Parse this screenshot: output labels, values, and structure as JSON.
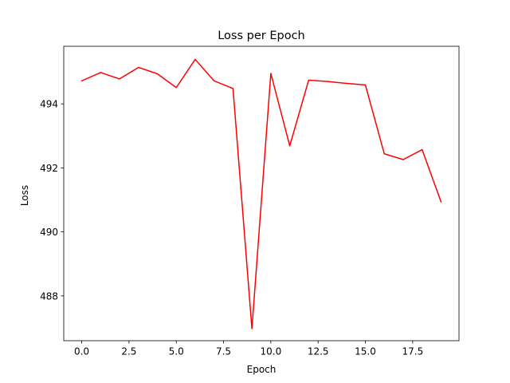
{
  "chart_data": {
    "type": "line",
    "title": "Loss per Epoch",
    "xlabel": "Epoch",
    "ylabel": "Loss",
    "x": [
      0,
      1,
      2,
      3,
      4,
      5,
      6,
      7,
      8,
      9,
      10,
      11,
      12,
      13,
      14,
      15,
      16,
      17,
      18,
      19
    ],
    "series": [
      {
        "color": "#ff0000",
        "values": [
          494.72,
          494.98,
          494.78,
          495.14,
          494.94,
          494.51,
          495.39,
          494.72,
          494.48,
          486.98,
          494.95,
          492.69,
          494.74,
          494.7,
          494.64,
          494.59,
          492.44,
          492.26,
          492.57,
          490.94
        ]
      }
    ],
    "xlim": [
      -0.95,
      19.95
    ],
    "ylim": [
      486.6,
      495.8
    ],
    "xticks": [
      0,
      2.5,
      5,
      7.5,
      10,
      12.5,
      15,
      17.5
    ],
    "xtick_labels": [
      "0.0",
      "2.5",
      "5.0",
      "7.5",
      "10.0",
      "12.5",
      "15.0",
      "17.5"
    ],
    "yticks": [
      488,
      490,
      492,
      494
    ],
    "ytick_labels": [
      "488",
      "490",
      "492",
      "494"
    ],
    "grid": false,
    "legend": "none"
  }
}
